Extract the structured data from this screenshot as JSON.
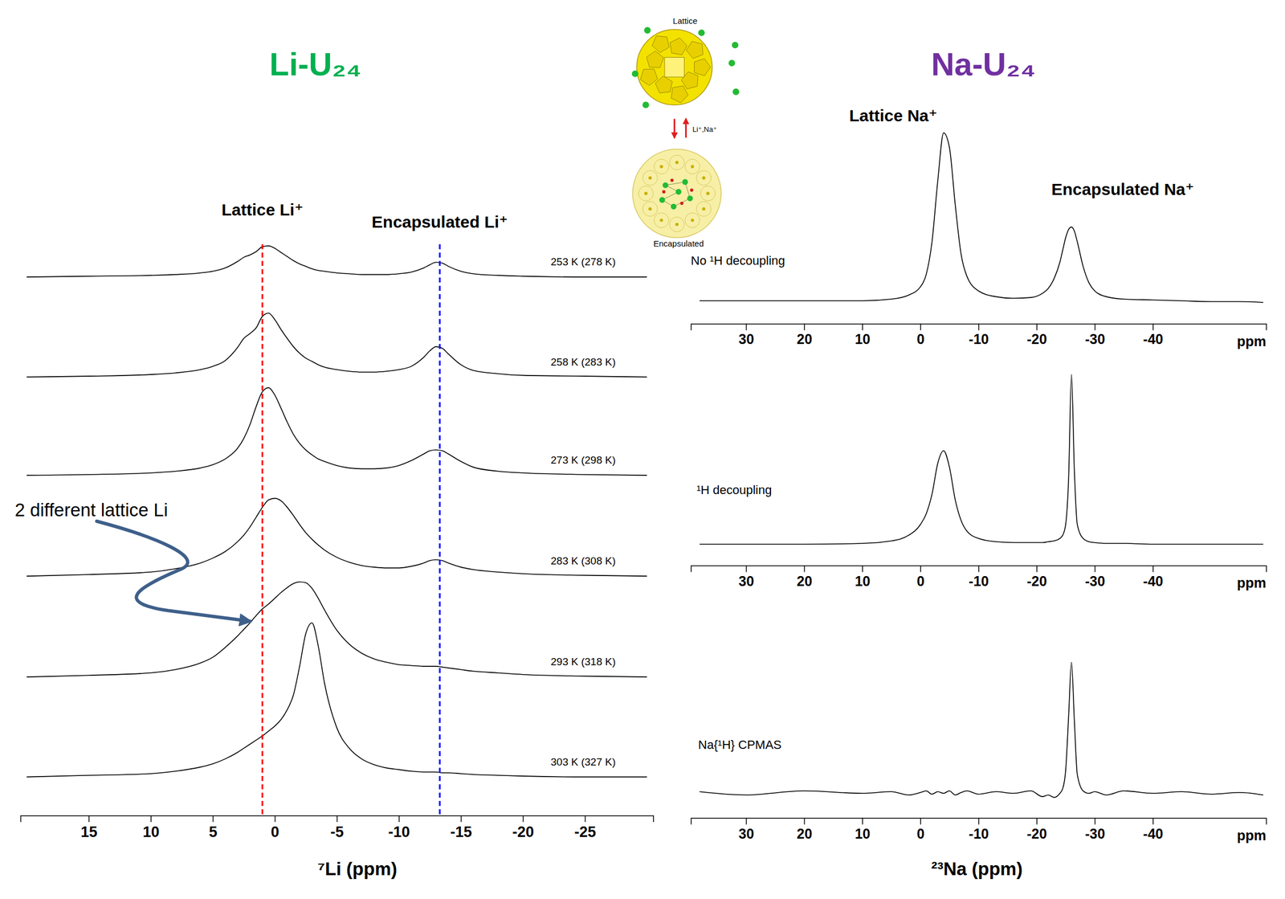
{
  "chart_data": [
    {
      "type": "line",
      "title": "Li-U₂₄",
      "x_label": "⁷Li (ppm)",
      "xlim": [
        20.5,
        -30.5
      ],
      "xticks": [
        15,
        10,
        5,
        0,
        -5,
        -10,
        -15,
        -20,
        -25
      ],
      "ylim": [
        -0.1,
        2
      ],
      "tick_labels": "x",
      "vlines": [
        {
          "x": 1,
          "label": "Lattice Li⁺",
          "color": "#ff0000",
          "line_style": "dashed"
        },
        {
          "x": -13.3,
          "label": "Encapsulated Li⁺",
          "color": "#0000ff",
          "line_style": "dashed"
        }
      ],
      "annotations": [
        "2 different lattice Li"
      ],
      "x": [
        20,
        15,
        10,
        8,
        6,
        5,
        4,
        3,
        2.5,
        2,
        1.5,
        1,
        0.5,
        0,
        -0.5,
        -1,
        -1.5,
        -2,
        -2.5,
        -3,
        -3.5,
        -4,
        -5,
        -6,
        -7,
        -8,
        -9,
        -10,
        -11,
        -12,
        -12.5,
        -13,
        -13.5,
        -14,
        -15,
        -16,
        -18,
        -20,
        -25,
        -30
      ],
      "series": [
        {
          "name": "253 K (278 K)",
          "color": "#000000",
          "values": [
            0,
            0.01,
            0.02,
            0.03,
            0.05,
            0.07,
            0.11,
            0.19,
            0.24,
            0.27,
            0.31,
            0.37,
            0.38,
            0.35,
            0.3,
            0.25,
            0.2,
            0.16,
            0.13,
            0.1,
            0.08,
            0.07,
            0.05,
            0.04,
            0.03,
            0.03,
            0.03,
            0.04,
            0.06,
            0.11,
            0.15,
            0.18,
            0.17,
            0.13,
            0.07,
            0.04,
            0.02,
            0.01,
            0,
            0
          ]
        },
        {
          "name": "258 K (283 K)",
          "color": "#000000",
          "values": [
            0,
            0.01,
            0.03,
            0.05,
            0.09,
            0.13,
            0.2,
            0.36,
            0.47,
            0.53,
            0.6,
            0.74,
            0.78,
            0.7,
            0.58,
            0.47,
            0.37,
            0.29,
            0.23,
            0.19,
            0.15,
            0.12,
            0.09,
            0.07,
            0.06,
            0.06,
            0.07,
            0.09,
            0.13,
            0.24,
            0.32,
            0.37,
            0.35,
            0.28,
            0.15,
            0.08,
            0.04,
            0.02,
            0.01,
            0
          ]
        },
        {
          "name": "273 K (298 K)",
          "color": "#000000",
          "values": [
            0,
            0.01,
            0.03,
            0.05,
            0.09,
            0.13,
            0.2,
            0.33,
            0.45,
            0.62,
            0.84,
            1.02,
            1.07,
            0.98,
            0.82,
            0.65,
            0.5,
            0.39,
            0.31,
            0.25,
            0.2,
            0.17,
            0.12,
            0.09,
            0.08,
            0.08,
            0.09,
            0.12,
            0.18,
            0.26,
            0.3,
            0.31,
            0.3,
            0.26,
            0.17,
            0.1,
            0.05,
            0.03,
            0.01,
            0
          ]
        },
        {
          "name": "283 K (308 K)",
          "color": "#000000",
          "values": [
            0,
            0.02,
            0.05,
            0.09,
            0.16,
            0.22,
            0.3,
            0.42,
            0.5,
            0.6,
            0.72,
            0.84,
            0.93,
            0.95,
            0.92,
            0.84,
            0.74,
            0.63,
            0.53,
            0.45,
            0.38,
            0.32,
            0.23,
            0.17,
            0.13,
            0.11,
            0.1,
            0.1,
            0.12,
            0.16,
            0.19,
            0.2,
            0.19,
            0.16,
            0.11,
            0.08,
            0.05,
            0.03,
            0.01,
            0
          ]
        },
        {
          "name": "293 K (318 K)",
          "color": "#000000",
          "values": [
            0,
            0.02,
            0.05,
            0.09,
            0.17,
            0.24,
            0.36,
            0.5,
            0.58,
            0.66,
            0.75,
            0.83,
            0.89,
            0.96,
            1.03,
            1.09,
            1.14,
            1.16,
            1.15,
            1.08,
            0.96,
            0.82,
            0.57,
            0.4,
            0.29,
            0.22,
            0.18,
            0.15,
            0.14,
            0.13,
            0.13,
            0.13,
            0.12,
            0.11,
            0.09,
            0.07,
            0.05,
            0.03,
            0.01,
            0
          ]
        },
        {
          "name": "303 K (327 K)",
          "color": "#000000",
          "values": [
            0,
            0.02,
            0.04,
            0.07,
            0.12,
            0.16,
            0.22,
            0.3,
            0.35,
            0.4,
            0.45,
            0.5,
            0.56,
            0.62,
            0.7,
            0.82,
            1.0,
            1.35,
            1.75,
            1.88,
            1.6,
            1.15,
            0.6,
            0.35,
            0.22,
            0.15,
            0.11,
            0.09,
            0.07,
            0.06,
            0.06,
            0.06,
            0.05,
            0.05,
            0.04,
            0.03,
            0.02,
            0.01,
            0,
            0
          ]
        }
      ]
    },
    {
      "type": "line",
      "title": "Na-U₂₄",
      "x_unit": "ppm",
      "xlim": [
        39.5,
        -59.5
      ],
      "xticks": [
        30,
        20,
        10,
        0,
        -10,
        -20,
        -30,
        -40
      ],
      "ylim": [
        -0.1,
        2.3
      ],
      "tick_labels": "x",
      "annotations": [
        "Lattice Na⁺",
        "Encapsulated Na⁺"
      ],
      "x": [
        38,
        30,
        20,
        10,
        5,
        2,
        0,
        -1,
        -2,
        -3,
        -4,
        -5,
        -6,
        -7,
        -8,
        -10,
        -13,
        -16,
        -19,
        -21,
        -22,
        -23,
        -24,
        -24.5,
        -25,
        -25.5,
        -26,
        -26.5,
        -27,
        -28,
        -29,
        -30,
        -32,
        -35,
        -40,
        -45,
        -50,
        -55,
        -59
      ],
      "series": [
        {
          "name": "No ¹H decoupling",
          "color": "#000000",
          "values": [
            0.03,
            0.03,
            0.03,
            0.03,
            0.05,
            0.1,
            0.2,
            0.35,
            0.75,
            1.5,
            2.08,
            1.9,
            1.2,
            0.6,
            0.33,
            0.15,
            0.08,
            0.06,
            0.07,
            0.12,
            0.18,
            0.3,
            0.5,
            0.65,
            0.8,
            0.9,
            0.93,
            0.88,
            0.75,
            0.45,
            0.25,
            0.15,
            0.08,
            0.05,
            0.04,
            0.03,
            0.02,
            0.02,
            0.01
          ]
        }
      ]
    },
    {
      "type": "line",
      "x_unit": "ppm",
      "xlim": [
        39.5,
        -59.5
      ],
      "xticks": [
        30,
        20,
        10,
        0,
        -10,
        -20,
        -30,
        -40
      ],
      "ylim": [
        -0.1,
        2.3
      ],
      "tick_labels": "x",
      "x": [
        38,
        30,
        20,
        10,
        5,
        2,
        0,
        -1,
        -2,
        -3,
        -4,
        -5,
        -6,
        -7,
        -8,
        -10,
        -13,
        -16,
        -19,
        -21,
        -22,
        -23,
        -24,
        -24.5,
        -25,
        -25.5,
        -26,
        -26.5,
        -27,
        -28,
        -29,
        -30,
        -32,
        -35,
        -40,
        -45,
        -50,
        -55,
        -59
      ],
      "series": [
        {
          "name": "¹H decoupling",
          "color": "#000000",
          "values": [
            0.01,
            0.01,
            0.01,
            0.02,
            0.05,
            0.12,
            0.25,
            0.38,
            0.62,
            1.0,
            1.15,
            0.95,
            0.55,
            0.3,
            0.17,
            0.08,
            0.04,
            0.03,
            0.03,
            0.03,
            0.04,
            0.05,
            0.08,
            0.12,
            0.25,
            0.8,
            2.08,
            0.9,
            0.25,
            0.08,
            0.04,
            0.03,
            0.02,
            0.02,
            0.01,
            0.01,
            0.01,
            0.01,
            0.01
          ]
        }
      ]
    },
    {
      "type": "line",
      "x_unit": "ppm",
      "x_label": "²³Na (ppm)",
      "xlim": [
        39.5,
        -59.5
      ],
      "xticks": [
        30,
        20,
        10,
        0,
        -10,
        -20,
        -30,
        -40
      ],
      "ylim": [
        -0.1,
        2.3
      ],
      "tick_labels": "x",
      "x": [
        38,
        30,
        20,
        10,
        5,
        2,
        0,
        -1,
        -2,
        -3,
        -4,
        -5,
        -6,
        -7,
        -8,
        -10,
        -13,
        -16,
        -19,
        -21,
        -22,
        -23,
        -24,
        -24.5,
        -25,
        -25.5,
        -26,
        -26.5,
        -27,
        -28,
        -29,
        -30,
        -32,
        -35,
        -40,
        -45,
        -50,
        -55,
        -59
      ],
      "series": [
        {
          "name": "Na{¹H} CPMAS",
          "color": "#000000",
          "values": [
            0.04,
            0.0,
            0.05,
            0.02,
            0.04,
            0.0,
            0.03,
            0.05,
            0.01,
            0.04,
            0.02,
            0.05,
            0.0,
            0.03,
            0.05,
            0.01,
            0.04,
            0.02,
            0.05,
            -0.02,
            0.0,
            -0.03,
            0.02,
            0.08,
            0.3,
            0.95,
            1.62,
            0.9,
            0.25,
            0.05,
            0.02,
            0.04,
            0.0,
            0.05,
            0.02,
            0.04,
            0.01,
            0.03,
            0.0
          ]
        }
      ]
    }
  ],
  "diagram": {
    "lattice_label": "Lattice",
    "encapsulated_label": "Encapsulated",
    "exchange_label": "Li⁺,Na⁺"
  }
}
